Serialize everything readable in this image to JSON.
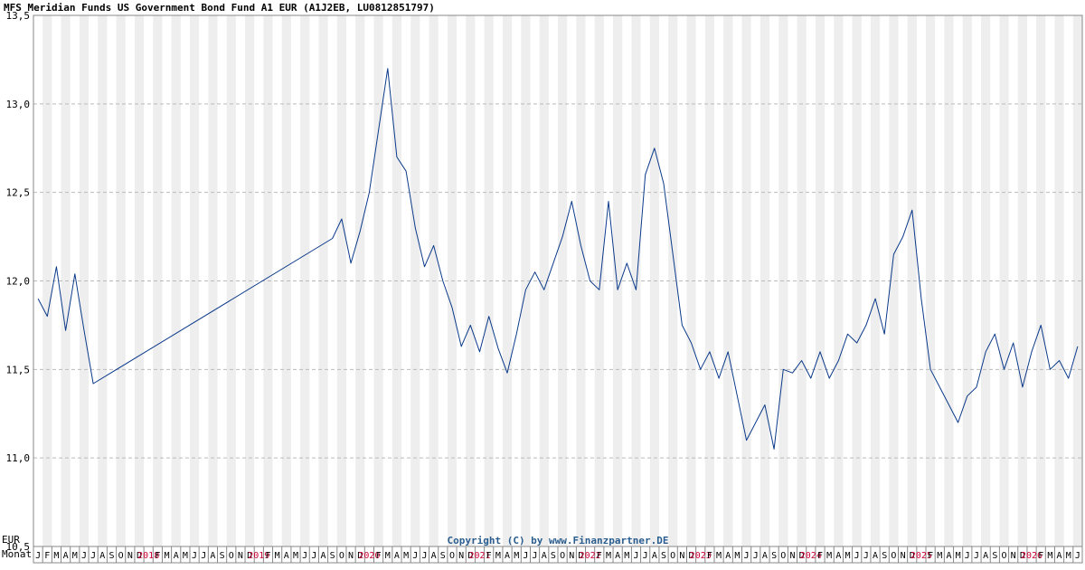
{
  "chart_data": {
    "type": "line",
    "title": "MFS Meridian Funds US Government Bond Fund A1 EUR (A1J2EB, LU0812851797)",
    "ylabel": "EUR",
    "xlabel": "Monat",
    "copyright": "Copyright (C) by www.Finanzpartner.DE",
    "ylim": [
      10.5,
      13.5
    ],
    "yticks": [
      "10,5",
      "11,0",
      "11,5",
      "12,0",
      "12,5",
      "13,0",
      "13,5"
    ],
    "ytick_values": [
      10.5,
      11.0,
      11.5,
      12.0,
      12.5,
      13.0,
      13.5
    ],
    "grid": true,
    "x_start": "2017-01",
    "x_end": "2026-06",
    "month_labels": [
      "J",
      "F",
      "M",
      "A",
      "M",
      "J",
      "J",
      "A",
      "S",
      "O",
      "N",
      "D",
      "2018",
      "F",
      "M",
      "A",
      "M",
      "J",
      "J",
      "A",
      "S",
      "O",
      "N",
      "D",
      "2019",
      "F",
      "M",
      "A",
      "M",
      "J",
      "J",
      "A",
      "S",
      "O",
      "N",
      "D",
      "2020",
      "F",
      "M",
      "A",
      "M",
      "J",
      "J",
      "A",
      "S",
      "O",
      "N",
      "D",
      "2021",
      "F",
      "M",
      "A",
      "M",
      "J",
      "J",
      "A",
      "S",
      "O",
      "N",
      "D",
      "2022",
      "F",
      "M",
      "A",
      "M",
      "J",
      "J",
      "A",
      "S",
      "O",
      "N",
      "D",
      "2023",
      "F",
      "M",
      "A",
      "M",
      "J",
      "J",
      "A",
      "S",
      "O",
      "N",
      "D",
      "2024",
      "F",
      "M",
      "A",
      "M",
      "J",
      "J",
      "A",
      "S",
      "O",
      "N",
      "D",
      "2025",
      "F",
      "M",
      "A",
      "M",
      "J",
      "J",
      "A",
      "S",
      "O",
      "N",
      "D",
      "2026",
      "F",
      "M",
      "A",
      "M",
      "J"
    ],
    "series": [
      {
        "color": "#0b3a8a",
        "x": [
          "2017-01",
          "2017-02",
          "2017-03",
          "2017-04",
          "2017-05",
          "2017-06",
          "2017-07",
          "2019-09",
          "2019-10",
          "2019-11",
          "2019-12",
          "2020-01",
          "2020-02",
          "2020-03",
          "2020-04",
          "2020-05",
          "2020-06",
          "2020-07",
          "2020-08",
          "2020-09",
          "2020-10",
          "2020-11",
          "2020-12",
          "2021-01",
          "2021-02",
          "2021-03",
          "2021-04",
          "2021-05",
          "2021-06",
          "2021-07",
          "2021-08",
          "2021-09",
          "2021-10",
          "2021-11",
          "2021-12",
          "2022-01",
          "2022-02",
          "2022-03",
          "2022-04",
          "2022-05",
          "2022-06",
          "2022-07",
          "2022-08",
          "2022-09",
          "2022-10",
          "2022-11",
          "2022-12",
          "2023-01",
          "2023-02",
          "2023-03",
          "2023-04",
          "2023-05",
          "2023-06",
          "2023-07",
          "2023-08",
          "2023-09",
          "2023-10",
          "2023-11",
          "2023-12",
          "2024-01",
          "2024-02",
          "2024-03",
          "2024-04",
          "2024-05",
          "2024-06",
          "2024-07",
          "2024-08",
          "2024-09",
          "2024-10",
          "2024-11",
          "2024-12",
          "2025-01",
          "2025-02",
          "2025-03",
          "2025-04",
          "2025-05",
          "2025-06",
          "2025-07",
          "2025-08",
          "2025-09",
          "2025-10",
          "2025-11",
          "2025-12",
          "2026-01",
          "2026-02",
          "2026-03",
          "2026-04",
          "2026-05",
          "2026-06"
        ],
        "values": [
          11.9,
          11.8,
          12.08,
          11.72,
          12.04,
          11.72,
          11.42,
          12.24,
          12.35,
          12.1,
          12.28,
          12.5,
          12.85,
          13.2,
          12.7,
          12.62,
          12.3,
          12.08,
          12.2,
          12.0,
          11.85,
          11.63,
          11.75,
          11.6,
          11.8,
          11.62,
          11.48,
          11.7,
          11.95,
          12.05,
          11.95,
          12.1,
          12.25,
          12.45,
          12.2,
          12.0,
          11.95,
          12.45,
          11.95,
          12.1,
          11.95,
          12.6,
          12.75,
          12.55,
          12.15,
          11.75,
          11.65,
          11.5,
          11.6,
          11.45,
          11.6,
          11.35,
          11.1,
          11.2,
          11.3,
          11.05,
          11.5,
          11.48,
          11.55,
          11.45,
          11.6,
          11.45,
          11.55,
          11.7,
          11.65,
          11.75,
          11.9,
          11.7,
          12.15,
          12.25,
          12.4,
          11.9,
          11.5,
          11.4,
          11.3,
          11.2,
          11.35,
          11.4,
          11.6,
          11.7,
          11.5,
          11.65,
          11.4,
          11.6,
          11.75,
          11.5,
          11.55,
          11.45,
          11.63
        ]
      }
    ]
  }
}
